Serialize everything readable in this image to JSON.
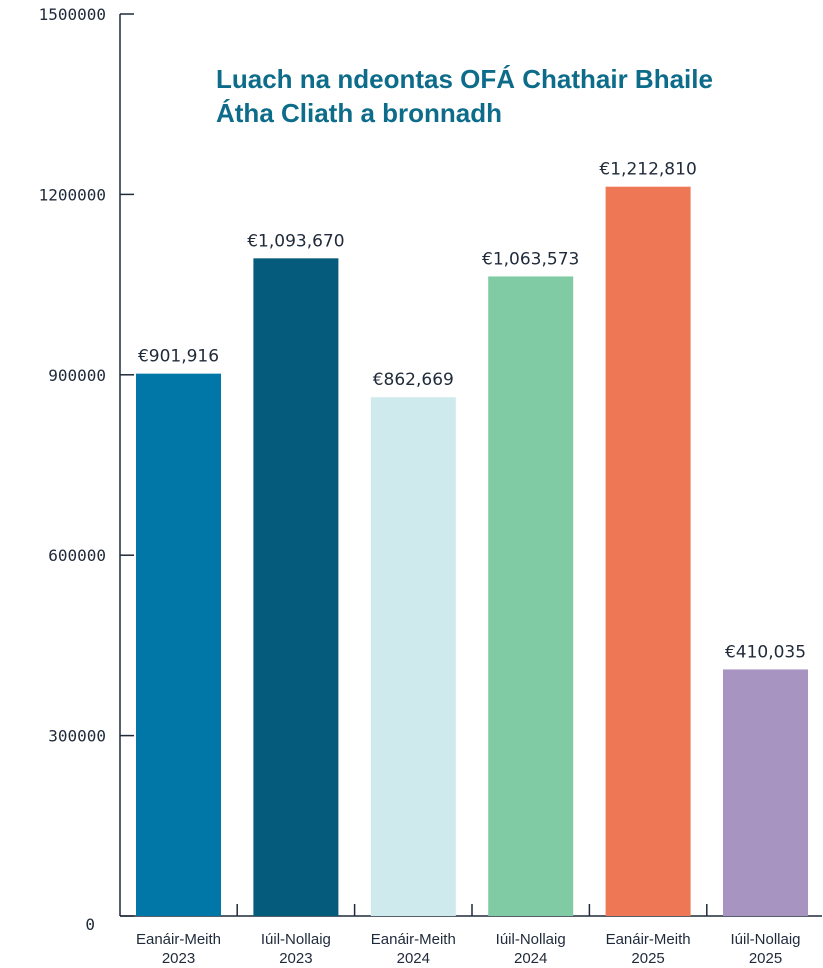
{
  "chart_data": {
    "type": "bar",
    "title": "Luach na ndeontas OFÁ Chathair Bhaile Átha Cliath a bronnadh",
    "categories": [
      [
        "Eanáir-Meith",
        "2023"
      ],
      [
        "Iúil-Nollaig",
        "2023"
      ],
      [
        "Eanáir-Meith",
        "2024"
      ],
      [
        "Iúil-Nollaig",
        "2024"
      ],
      [
        "Eanáir-Meith",
        "2025"
      ],
      [
        "Iúil-Nollaig",
        "2025"
      ]
    ],
    "values": [
      901916,
      1093670,
      862669,
      1063573,
      1212810,
      410035
    ],
    "value_labels": [
      "€901,916",
      "€1,093,670",
      "€862,669",
      "€1,063,573",
      "€1,212,810",
      "€410,035"
    ],
    "colors": [
      "#0077a6",
      "#045b7c",
      "#cfeaec",
      "#80cba4",
      "#ee7755",
      "#a894c1"
    ],
    "y_ticks": [
      0,
      300000,
      600000,
      900000,
      1200000,
      1500000
    ],
    "ylim": [
      0,
      1500000
    ],
    "xlabel": "",
    "ylabel": "",
    "grid": false
  }
}
